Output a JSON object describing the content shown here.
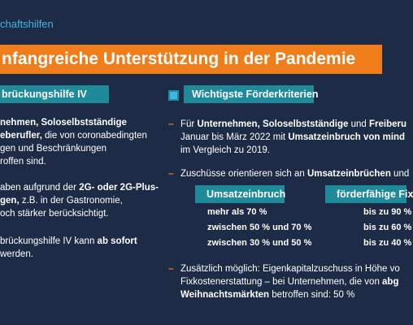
{
  "header": {
    "section": "chaftshilfen",
    "title": "nfangreiche Unterstützung in der Pandemie"
  },
  "left": {
    "heading": "brückungshilfe IV",
    "paragraphs": [
      [
        [
          {
            "text": "nehmen, Soloselbstständige",
            "bold": true
          }
        ],
        [
          {
            "text": "eberufler,",
            "bold": true
          },
          {
            "text": " die von coronabedingten"
          }
        ],
        [
          {
            "text": "gen und Beschränkungen"
          }
        ],
        [
          {
            "text": "roffen sind."
          }
        ]
      ],
      [
        [
          {
            "text": "aben aufgrund der "
          },
          {
            "text": "2G- oder 2G-Plus-",
            "bold": true
          }
        ],
        [
          {
            "text": "gen,",
            "bold": true
          },
          {
            "text": " z.B. in der Gastronomie,"
          }
        ],
        [
          {
            "text": "och stärker berücksichtigt."
          }
        ]
      ],
      [
        [
          {
            "text": "brückungshilfe IV kann "
          },
          {
            "text": "ab sofort",
            "bold": true
          }
        ],
        [
          {
            "text": " werden."
          }
        ]
      ]
    ]
  },
  "right": {
    "heading": "Wichtigste Förderkriterien",
    "bullets": [
      [
        [
          {
            "text": "Für "
          },
          {
            "text": "Unternehmen, Soloselbstständige",
            "bold": true
          },
          {
            "text": " und "
          },
          {
            "text": "Freiberu",
            "bold": true
          }
        ],
        [
          {
            "text": "Januar bis März 2022 mit "
          },
          {
            "text": "Umsatzeinbruch von mind",
            "bold": true
          }
        ],
        [
          {
            "text": "im Vergleich zu 2019."
          }
        ]
      ],
      [
        [
          {
            "text": "Zuschüsse orientieren sich an "
          },
          {
            "text": "Umsatzeinbrüchen",
            "bold": true
          },
          {
            "text": " und"
          }
        ]
      ],
      [
        [
          {
            "text": "Zusätzlich möglich: Eigenkapitalzuschuss in Höhe vo"
          }
        ],
        [
          {
            "text": "Fixkostenerstattung  – bei Unternehmen, die von "
          },
          {
            "text": "abg",
            "bold": true
          }
        ],
        [
          {
            "text": "Weihnachtsmärkten",
            "bold": true
          },
          {
            "text": " betroffen sind: 50 %"
          }
        ]
      ]
    ],
    "table": {
      "headers": [
        "Umsatzeinbruch",
        "förderfähige Fix"
      ],
      "rows": [
        [
          "mehr als 70 %",
          "bis zu 90 %"
        ],
        [
          "zwischen 50 % und 70 %",
          "bis zu 60 %"
        ],
        [
          "zwischen 30 % und 50 %",
          "bis zu 40 %"
        ]
      ]
    }
  }
}
